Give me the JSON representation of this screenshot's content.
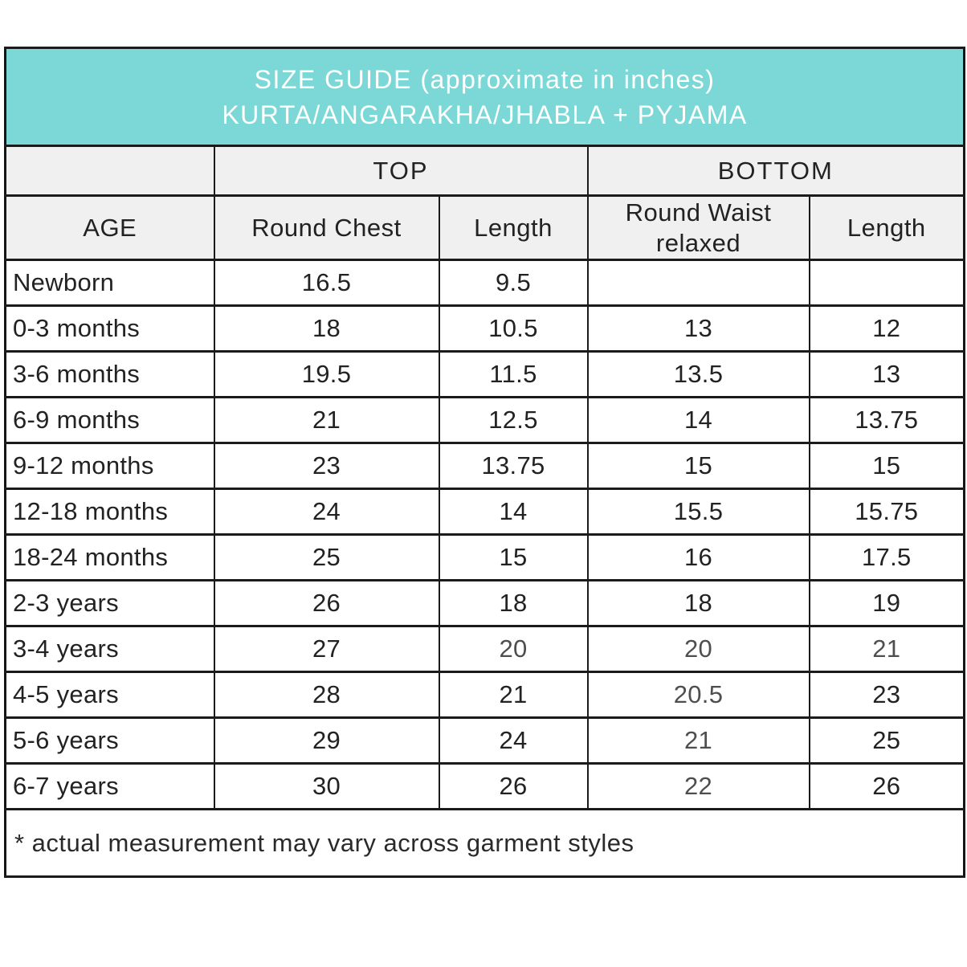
{
  "chart_data": {
    "type": "table",
    "title": "SIZE GUIDE (approximate in inches)",
    "subtitle": "KURTA/ANGARAKHA/JHABLA + PYJAMA",
    "group_headers": {
      "top": "TOP",
      "bottom": "BOTTOM"
    },
    "column_headers": {
      "age": "AGE",
      "round_chest": "Round Chest",
      "top_length": "Length",
      "round_waist": "Round Waist relaxed",
      "bottom_length": "Length"
    },
    "rows": [
      {
        "age": "Newborn",
        "round_chest": "16.5",
        "top_length": "9.5",
        "round_waist": "",
        "bottom_length": ""
      },
      {
        "age": "0-3 months",
        "round_chest": "18",
        "top_length": "10.5",
        "round_waist": "13",
        "bottom_length": "12"
      },
      {
        "age": "3-6 months",
        "round_chest": "19.5",
        "top_length": "11.5",
        "round_waist": "13.5",
        "bottom_length": "13"
      },
      {
        "age": "6-9 months",
        "round_chest": "21",
        "top_length": "12.5",
        "round_waist": "14",
        "bottom_length": "13.75"
      },
      {
        "age": "9-12 months",
        "round_chest": "23",
        "top_length": "13.75",
        "round_waist": "15",
        "bottom_length": "15"
      },
      {
        "age": "12-18 months",
        "round_chest": "24",
        "top_length": "14",
        "round_waist": "15.5",
        "bottom_length": "15.75"
      },
      {
        "age": "18-24 months",
        "round_chest": "25",
        "top_length": "15",
        "round_waist": "16",
        "bottom_length": "17.5"
      },
      {
        "age": "2-3 years",
        "round_chest": "26",
        "top_length": "18",
        "round_waist": "18",
        "bottom_length": "19"
      },
      {
        "age": "3-4 years",
        "round_chest": "27",
        "top_length": "20",
        "round_waist": "20",
        "bottom_length": "21"
      },
      {
        "age": "4-5 years",
        "round_chest": "28",
        "top_length": "21",
        "round_waist": "20.5",
        "bottom_length": "23"
      },
      {
        "age": "5-6 years",
        "round_chest": "29",
        "top_length": "24",
        "round_waist": "21",
        "bottom_length": "25"
      },
      {
        "age": "6-7 years",
        "round_chest": "30",
        "top_length": "26",
        "round_waist": "22",
        "bottom_length": "26"
      }
    ],
    "light_cells": [
      "8-top_length",
      "8-round_waist",
      "8-bottom_length",
      "9-round_waist",
      "10-round_waist",
      "11-round_waist"
    ],
    "footnote": "* actual measurement may vary across garment styles"
  },
  "colors": {
    "banner_bg": "#7bd8d6",
    "banner_text": "#ffffff",
    "subheader_bg": "#f0f0f0",
    "border": "#1b1b1b",
    "text": "#222222",
    "light_text": "#4e4e4e",
    "page_bg": "#ffffff"
  }
}
